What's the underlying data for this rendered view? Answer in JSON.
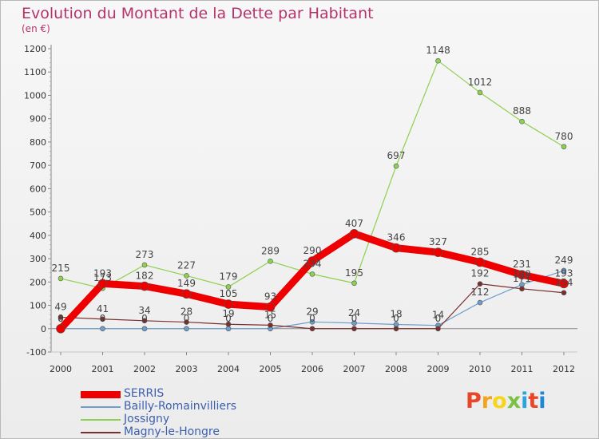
{
  "header": {
    "title": "Evolution du Montant de la Dette par Habitant",
    "subtitle": "(en €)"
  },
  "logo": {
    "text": "Proxiti",
    "colors": [
      "#e8462a",
      "#f2a51a",
      "#f7d51d",
      "#7cc242",
      "#2aa4dd",
      "#e8462a",
      "#1e88d6"
    ]
  },
  "chart_data": {
    "type": "line",
    "title": "Evolution du Montant de la Dette par Habitant",
    "subtitle": "(en €)",
    "x": [
      "2000",
      "2001",
      "2002",
      "2003",
      "2004",
      "2005",
      "2006",
      "2007",
      "2008",
      "2009",
      "2010",
      "2011",
      "2012"
    ],
    "ylim": [
      -100,
      1200
    ],
    "yticks": [
      -100,
      0,
      100,
      200,
      300,
      400,
      500,
      600,
      700,
      800,
      900,
      1000,
      1100,
      1200
    ],
    "grid": false,
    "legend_position": "bottom-left",
    "series": [
      {
        "name": "SERRIS",
        "color": "#ee0000",
        "values": [
          0,
          193,
          182,
          149,
          105,
          93,
          290,
          407,
          346,
          327,
          285,
          231,
          193
        ],
        "labels": [
          "0",
          "193",
          "182",
          "149",
          "105",
          "93",
          "290",
          "407",
          "346",
          "327",
          "285",
          "231",
          "193"
        ]
      },
      {
        "name": "Bailly-Romainvilliers",
        "color": "#6d9ecc",
        "values": [
          0,
          0,
          0,
          0,
          0,
          0,
          29,
          24,
          18,
          14,
          112,
          189,
          249
        ],
        "labels": [
          "0",
          "0",
          "0",
          "0",
          "0",
          "0",
          "29",
          "24",
          "18",
          "14",
          "112",
          "189",
          "249"
        ]
      },
      {
        "name": "Jossigny",
        "color": "#8ed04f",
        "values": [
          215,
          173,
          273,
          227,
          179,
          289,
          234,
          195,
          697,
          1148,
          1012,
          888,
          780
        ],
        "labels": [
          "215",
          "173",
          "273",
          "227",
          "179",
          "289",
          "234",
          "195",
          "697",
          "1148",
          "1012",
          "888",
          "780"
        ]
      },
      {
        "name": "Magny-le-Hongre",
        "color": "#7a2f2f",
        "values": [
          49,
          41,
          34,
          28,
          19,
          15,
          0,
          0,
          0,
          0,
          192,
          171,
          154
        ],
        "labels": [
          "49",
          "41",
          "34",
          "28",
          "19",
          "15",
          "0",
          "0",
          "0",
          "0",
          "192",
          "171",
          "154"
        ]
      }
    ]
  }
}
